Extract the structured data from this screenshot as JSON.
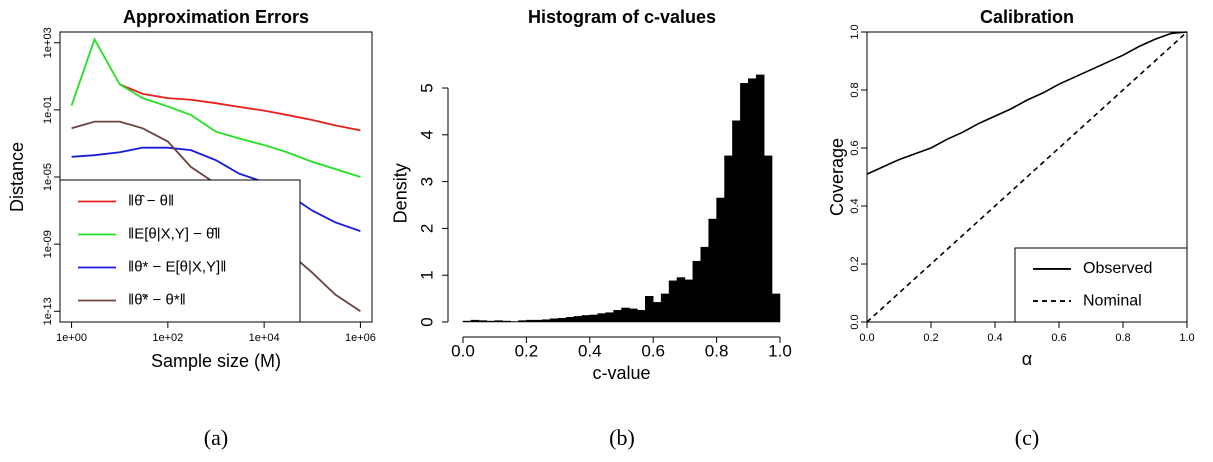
{
  "chart_data": [
    {
      "type": "line",
      "title": "Approximation Errors",
      "xlabel": "Sample size (M)",
      "ylabel": "Distance",
      "caption": "(a)",
      "xscale": "log",
      "yscale": "log",
      "legend": "bottomleft",
      "x": [
        1,
        3,
        10,
        30,
        100,
        300,
        1000,
        3000,
        10000,
        30000,
        100000,
        300000,
        1000000
      ],
      "series": [
        {
          "name": "‖θ̂ − θ‖",
          "color": "#e8201c",
          "linestyle": "solid",
          "values": [
            null,
            null,
            3.3,
            0.9,
            0.5,
            0.4,
            0.25,
            0.15,
            0.09,
            0.05,
            0.025,
            0.012,
            0.006
          ]
        },
        {
          "name": "‖E[θ|X,Y] − θ̂‖",
          "color": "#22e022",
          "linestyle": "solid",
          "values": [
            0.18,
            1600,
            3.3,
            0.5,
            0.16,
            0.05,
            0.005,
            0.002,
            0.0008,
            0.0003,
            8e-05,
            3e-05,
            1e-05
          ]
        },
        {
          "name": "‖θ* − E[θ|X,Y]‖",
          "color": "#1a1ae0",
          "linestyle": "solid",
          "values": [
            0.00016,
            0.0002,
            0.0003,
            0.00056,
            0.00056,
            0.0004,
            0.0001,
            1.6e-05,
            5e-06,
            1e-06,
            1e-07,
            2e-08,
            6e-09
          ]
        },
        {
          "name": "‖θ̃* − θ*‖",
          "color": "#6b4440",
          "linestyle": "solid",
          "values": [
            0.008,
            0.02,
            0.02,
            0.008,
            0.0013,
            4e-05,
            4e-06,
            3e-07,
            1e-08,
            4e-10,
            2e-11,
            1e-12,
            1e-13
          ]
        }
      ],
      "xlim": [
        0.575,
        1740000
      ],
      "xticks": [
        {
          "value": 1,
          "label": "1e+00"
        },
        {
          "value": 100,
          "label": "1e+02"
        },
        {
          "value": 10000,
          "label": "1e+04"
        },
        {
          "value": 1000000,
          "label": "1e+06"
        }
      ],
      "ylim": [
        2.3e-14,
        4365
      ],
      "yticks": [
        {
          "value": 1000,
          "label": "1e+03"
        },
        {
          "value": 0.1,
          "label": "1e-01"
        },
        {
          "value": 1e-05,
          "label": "1e-05"
        },
        {
          "value": 1e-09,
          "label": "1e-09"
        },
        {
          "value": 1e-13,
          "label": "1e-13"
        }
      ]
    },
    {
      "type": "histogram",
      "title": "Histogram of c-values",
      "xlabel": "c-value",
      "ylabel": "Density",
      "caption": "(b)",
      "color": "#000000",
      "bins": [
        0,
        0.025,
        0.05,
        0.075,
        0.1,
        0.125,
        0.15,
        0.175,
        0.2,
        0.225,
        0.25,
        0.275,
        0.3,
        0.325,
        0.35,
        0.375,
        0.4,
        0.425,
        0.45,
        0.475,
        0.5,
        0.525,
        0.55,
        0.575,
        0.6,
        0.625,
        0.65,
        0.675,
        0.7,
        0.725,
        0.75,
        0.775,
        0.8,
        0.825,
        0.85,
        0.875,
        0.9,
        0.925,
        0.95,
        0.975,
        1
      ],
      "values": [
        0.02,
        0.04,
        0.03,
        0.02,
        0.03,
        0.02,
        0.01,
        0.03,
        0.04,
        0.04,
        0.05,
        0.07,
        0.08,
        0.1,
        0.12,
        0.14,
        0.15,
        0.18,
        0.2,
        0.25,
        0.3,
        0.28,
        0.25,
        0.55,
        0.42,
        0.6,
        0.88,
        0.95,
        0.9,
        1.3,
        1.6,
        2.2,
        2.65,
        3.55,
        4.3,
        5.1,
        5.2,
        5.28,
        3.55,
        0.6
      ],
      "xlim": [
        0,
        1
      ],
      "xticks": [
        {
          "value": 0,
          "label": "0.0"
        },
        0.2,
        0.4,
        0.6,
        0.8,
        {
          "value": 1,
          "label": "1.0"
        }
      ],
      "ylim": [
        0,
        5.5
      ],
      "yticks": [
        0,
        1,
        2,
        3,
        4,
        5
      ]
    },
    {
      "type": "line",
      "title": "Calibration",
      "xlabel": "α",
      "ylabel": "Coverage",
      "caption": "(c)",
      "legend": "bottomright",
      "x": [
        0,
        0.05,
        0.1,
        0.15,
        0.2,
        0.25,
        0.3,
        0.35,
        0.4,
        0.45,
        0.5,
        0.55,
        0.6,
        0.65,
        0.7,
        0.75,
        0.8,
        0.85,
        0.9,
        0.95,
        1
      ],
      "series": [
        {
          "name": "Observed",
          "color": "#000000",
          "linestyle": "solid",
          "values": [
            0.51,
            0.535,
            0.56,
            0.58,
            0.6,
            0.63,
            0.655,
            0.685,
            0.71,
            0.735,
            0.765,
            0.79,
            0.82,
            0.845,
            0.87,
            0.895,
            0.92,
            0.95,
            0.975,
            0.995,
            1
          ]
        },
        {
          "name": "Nominal",
          "color": "#000000",
          "linestyle": "dashed",
          "values": [
            0,
            0.05,
            0.1,
            0.15,
            0.2,
            0.25,
            0.3,
            0.35,
            0.4,
            0.45,
            0.5,
            0.55,
            0.6,
            0.65,
            0.7,
            0.75,
            0.8,
            0.85,
            0.9,
            0.95,
            1
          ]
        }
      ],
      "xlim": [
        0,
        1
      ],
      "xticks": [
        {
          "value": 0,
          "label": "0.0"
        },
        0.2,
        0.4,
        0.6,
        0.8,
        {
          "value": 1,
          "label": "1.0"
        }
      ],
      "ylim": [
        0,
        1
      ],
      "yticks": [
        {
          "value": 0,
          "label": "0.0"
        },
        0.2,
        0.4,
        0.6,
        0.8,
        {
          "value": 1,
          "label": "1.0"
        }
      ]
    }
  ]
}
